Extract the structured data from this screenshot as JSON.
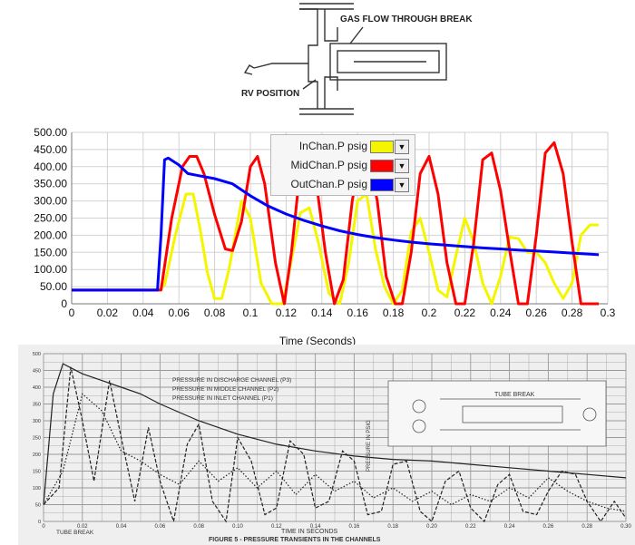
{
  "schematic": {
    "label_flow": "GAS FLOW THROUGH BREAK",
    "label_rv": "RV POSITION"
  },
  "chart_data": {
    "type": "line",
    "xlabel": "Time (Seconds)",
    "ylabel": "",
    "xlim": [
      0,
      0.3
    ],
    "ylim": [
      0,
      500
    ],
    "xticks": [
      "0",
      "0.02",
      "0.04",
      "0.06",
      "0.08",
      "0.1",
      "0.12",
      "0.14",
      "0.16",
      "0.18",
      "0.2",
      "0.22",
      "0.24",
      "0.26",
      "0.28",
      "0.3"
    ],
    "yticks": [
      "0",
      "50.00",
      "100.00",
      "150.00",
      "200.00",
      "250.00",
      "300.00",
      "350.00",
      "400.00",
      "450.00",
      "500.00"
    ],
    "grid": true,
    "legend_position": "top-center",
    "series": [
      {
        "name": "InChan.P psig",
        "color": "#f5f500",
        "x": [
          0,
          0.049,
          0.052,
          0.058,
          0.064,
          0.068,
          0.072,
          0.076,
          0.08,
          0.084,
          0.088,
          0.095,
          0.1,
          0.106,
          0.112,
          0.118,
          0.122,
          0.128,
          0.133,
          0.138,
          0.144,
          0.15,
          0.155,
          0.16,
          0.165,
          0.17,
          0.175,
          0.18,
          0.185,
          0.19,
          0.195,
          0.2,
          0.205,
          0.21,
          0.215,
          0.22,
          0.225,
          0.23,
          0.235,
          0.24,
          0.245,
          0.25,
          0.255,
          0.26,
          0.265,
          0.27,
          0.275,
          0.28,
          0.285,
          0.29,
          0.295
        ],
        "y": [
          40,
          40,
          55,
          200,
          320,
          320,
          215,
          90,
          15,
          15,
          100,
          300,
          250,
          60,
          0,
          0,
          100,
          265,
          280,
          180,
          30,
          0,
          120,
          300,
          320,
          160,
          50,
          0,
          40,
          210,
          250,
          150,
          40,
          20,
          140,
          250,
          180,
          60,
          0,
          80,
          195,
          190,
          150,
          150,
          120,
          60,
          15,
          60,
          200,
          230,
          230
        ]
      },
      {
        "name": "MidChan.P psig",
        "color": "#ff0000",
        "x": [
          0,
          0.05,
          0.056,
          0.062,
          0.066,
          0.07,
          0.074,
          0.08,
          0.086,
          0.09,
          0.095,
          0.1,
          0.104,
          0.108,
          0.114,
          0.119,
          0.123,
          0.128,
          0.133,
          0.137,
          0.142,
          0.147,
          0.152,
          0.157,
          0.161,
          0.166,
          0.171,
          0.176,
          0.181,
          0.185,
          0.19,
          0.195,
          0.2,
          0.205,
          0.21,
          0.215,
          0.22,
          0.225,
          0.23,
          0.235,
          0.24,
          0.245,
          0.25,
          0.255,
          0.26,
          0.265,
          0.27,
          0.275,
          0.28,
          0.285,
          0.29,
          0.295
        ],
        "y": [
          40,
          40,
          250,
          400,
          430,
          430,
          380,
          260,
          160,
          155,
          240,
          400,
          430,
          350,
          120,
          0,
          150,
          400,
          430,
          350,
          150,
          0,
          70,
          300,
          420,
          430,
          300,
          80,
          0,
          0,
          150,
          380,
          430,
          320,
          120,
          0,
          0,
          180,
          420,
          440,
          330,
          160,
          0,
          0,
          200,
          440,
          470,
          380,
          180,
          0,
          0,
          0
        ]
      },
      {
        "name": "OutChan.P psig",
        "color": "#0000ff",
        "x": [
          0,
          0.048,
          0.05,
          0.052,
          0.054,
          0.06,
          0.065,
          0.07,
          0.08,
          0.09,
          0.1,
          0.11,
          0.12,
          0.13,
          0.14,
          0.15,
          0.16,
          0.17,
          0.18,
          0.19,
          0.2,
          0.21,
          0.22,
          0.23,
          0.24,
          0.25,
          0.26,
          0.27,
          0.28,
          0.29,
          0.295
        ],
        "y": [
          40,
          40,
          200,
          420,
          425,
          405,
          380,
          375,
          365,
          350,
          315,
          285,
          262,
          243,
          227,
          213,
          202,
          193,
          186,
          180,
          175,
          171,
          167,
          163,
          160,
          157,
          154,
          151,
          148,
          145,
          143
        ]
      }
    ]
  },
  "scan_chart_data": {
    "type": "line",
    "title": "FIGURE 5 - PRESSURE TRANSIENTS IN THE CHANNELS",
    "xlabel": "TIME IN SECONDS",
    "ylabel": "PRESSURE IN PSIG",
    "legend": [
      "PRESSURE IN DISCHARGE CHANNEL (P3)",
      "PRESSURE IN MIDDLE CHANNEL (P2)",
      "PRESSURE IN INLET CHANNEL (P1)"
    ],
    "inset_label": "TUBE BREAK",
    "annotation": "TUBE BREAK",
    "xlim": [
      0,
      0.3
    ],
    "ylim": [
      0,
      500
    ],
    "xticks": [
      "0",
      "0.02",
      "0.04",
      "0.06",
      "0.08",
      "0.10",
      "0.12",
      "0.14",
      "0.16",
      "0.18",
      "0.20",
      "0.22",
      "0.24",
      "0.26",
      "0.28",
      "0.30"
    ],
    "yticks": [
      "0",
      "50",
      "100",
      "150",
      "200",
      "250",
      "300",
      "350",
      "400",
      "450",
      "500"
    ],
    "series": [
      {
        "name": "P3",
        "x": [
          0,
          0.005,
          0.01,
          0.02,
          0.03,
          0.04,
          0.05,
          0.06,
          0.08,
          0.1,
          0.12,
          0.14,
          0.16,
          0.18,
          0.2,
          0.22,
          0.24,
          0.26,
          0.28,
          0.3
        ],
        "y": [
          50,
          380,
          470,
          440,
          420,
          400,
          380,
          350,
          300,
          260,
          230,
          210,
          195,
          185,
          180,
          170,
          160,
          150,
          140,
          130
        ]
      },
      {
        "name": "P2",
        "x": [
          0,
          0.008,
          0.014,
          0.02,
          0.026,
          0.034,
          0.04,
          0.047,
          0.054,
          0.06,
          0.067,
          0.074,
          0.08,
          0.087,
          0.094,
          0.1,
          0.107,
          0.114,
          0.12,
          0.127,
          0.134,
          0.14,
          0.147,
          0.154,
          0.16,
          0.167,
          0.174,
          0.18,
          0.187,
          0.194,
          0.2,
          0.207,
          0.214,
          0.22,
          0.227,
          0.234,
          0.24,
          0.247,
          0.254,
          0.26,
          0.267,
          0.274,
          0.28,
          0.287,
          0.294,
          0.3
        ],
        "y": [
          50,
          100,
          460,
          300,
          120,
          420,
          250,
          60,
          280,
          120,
          0,
          230,
          290,
          60,
          0,
          250,
          180,
          20,
          40,
          240,
          200,
          40,
          60,
          210,
          180,
          20,
          30,
          170,
          180,
          30,
          0,
          120,
          150,
          40,
          0,
          110,
          140,
          30,
          20,
          90,
          150,
          140,
          60,
          0,
          60,
          10
        ]
      },
      {
        "name": "P1",
        "x": [
          0,
          0.01,
          0.02,
          0.03,
          0.04,
          0.05,
          0.06,
          0.07,
          0.08,
          0.09,
          0.1,
          0.11,
          0.12,
          0.13,
          0.14,
          0.15,
          0.16,
          0.17,
          0.18,
          0.19,
          0.2,
          0.21,
          0.22,
          0.23,
          0.24,
          0.25,
          0.26,
          0.27,
          0.28,
          0.29,
          0.3
        ],
        "y": [
          50,
          150,
          380,
          330,
          210,
          180,
          140,
          110,
          180,
          120,
          160,
          100,
          150,
          80,
          140,
          90,
          120,
          70,
          100,
          60,
          90,
          50,
          80,
          60,
          100,
          70,
          130,
          90,
          60,
          40,
          30
        ]
      }
    ]
  }
}
